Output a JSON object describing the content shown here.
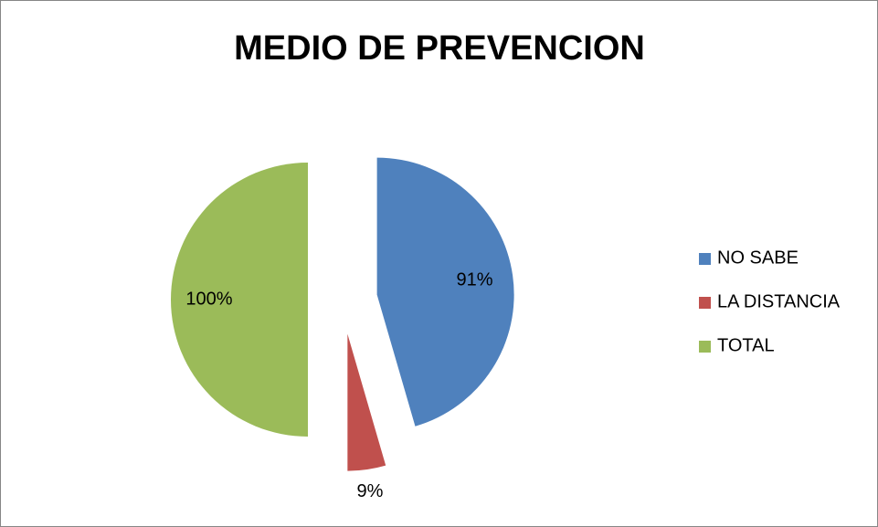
{
  "chart_data": {
    "type": "pie",
    "title": "MEDIO DE PREVENCION",
    "categories": [
      "NO SABE",
      "LA DISTANCIA",
      "TOTAL"
    ],
    "values": [
      91,
      9,
      100
    ],
    "value_labels": [
      "91%",
      "9%",
      "100%"
    ],
    "colors": [
      "#4f81bd",
      "#c0504d",
      "#9bbb59"
    ],
    "legend": "right",
    "exploded": true
  }
}
